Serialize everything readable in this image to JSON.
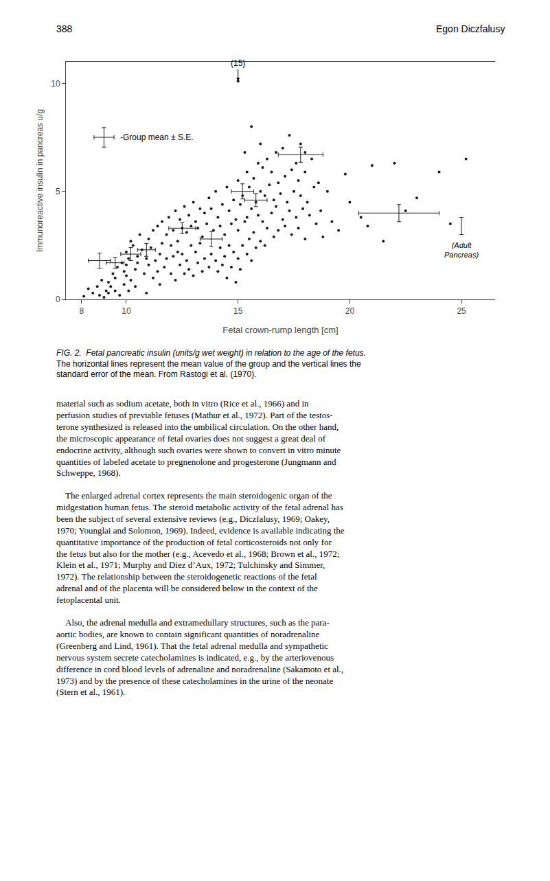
{
  "chart_data": {
    "type": "scatter",
    "x": [
      8.1,
      8.3,
      8.5,
      8.7,
      8.8,
      8.9,
      9.0,
      9.1,
      9.2,
      9.2,
      9.3,
      9.4,
      9.5,
      9.5,
      9.6,
      9.7,
      9.8,
      9.9,
      9.9,
      10.0,
      10.0,
      10.0,
      10.1,
      10.1,
      10.2,
      10.2,
      10.3,
      10.4,
      10.4,
      10.5,
      10.5,
      10.6,
      10.7,
      10.8,
      10.9,
      10.9,
      11.0,
      11.0,
      11.1,
      11.2,
      11.2,
      11.3,
      11.4,
      11.4,
      11.5,
      11.5,
      11.6,
      11.6,
      11.7,
      11.8,
      11.8,
      11.9,
      12.0,
      12.0,
      12.1,
      12.1,
      12.2,
      12.2,
      12.3,
      12.3,
      12.4,
      12.4,
      12.5,
      12.5,
      12.6,
      12.6,
      12.7,
      12.7,
      12.8,
      12.8,
      12.9,
      12.9,
      13.0,
      13.0,
      13.1,
      13.1,
      13.2,
      13.2,
      13.3,
      13.3,
      13.4,
      13.4,
      13.5,
      13.5,
      13.6,
      13.7,
      13.7,
      13.8,
      13.8,
      13.9,
      14.0,
      14.0,
      14.1,
      14.1,
      14.2,
      14.2,
      14.3,
      14.3,
      14.4,
      14.4,
      14.5,
      14.5,
      14.6,
      14.6,
      14.7,
      14.7,
      14.8,
      14.8,
      14.9,
      14.9,
      15.0,
      15.0,
      15.0,
      15.0,
      15.1,
      15.1,
      15.2,
      15.2,
      15.3,
      15.3,
      15.4,
      15.4,
      15.4,
      15.5,
      15.5,
      15.6,
      15.6,
      15.6,
      15.7,
      15.7,
      15.8,
      15.8,
      15.9,
      15.9,
      16.0,
      16.0,
      16.0,
      16.1,
      16.1,
      16.2,
      16.2,
      16.3,
      16.3,
      16.4,
      16.5,
      16.5,
      16.6,
      16.6,
      16.7,
      16.7,
      16.8,
      16.8,
      16.9,
      17.0,
      17.0,
      17.1,
      17.1,
      17.2,
      17.3,
      17.3,
      17.4,
      17.4,
      17.5,
      17.6,
      17.6,
      17.7,
      17.7,
      17.8,
      17.8,
      17.9,
      18.0,
      18.0,
      18.0,
      18.1,
      18.2,
      18.3,
      18.4,
      18.5,
      18.6,
      18.7,
      18.8,
      19.0,
      19.2,
      19.5,
      19.8,
      20.0,
      20.5,
      20.8,
      21.0,
      21.5,
      22.0,
      22.5,
      23.0,
      24.0,
      24.5,
      25.2
    ],
    "values": [
      0.15,
      0.5,
      0.3,
      0.6,
      0.2,
      0.9,
      0.1,
      0.4,
      0.8,
      0.3,
      0.6,
      1.2,
      0.4,
      1.0,
      1.5,
      0.2,
      1.7,
      1.3,
      0.7,
      1.6,
      2.2,
      1.1,
      0.4,
      1.9,
      2.7,
      0.9,
      2.5,
      1.4,
      0.6,
      2.0,
      1.7,
      3.0,
      2.3,
      1.2,
      1.9,
      0.3,
      2.8,
      1.6,
      2.4,
      3.2,
      1.0,
      1.8,
      3.4,
      1.3,
      2.1,
      0.7,
      3.6,
      2.6,
      1.5,
      3.0,
      1.9,
      3.8,
      2.5,
      1.2,
      3.2,
      2.0,
      4.1,
      0.9,
      2.7,
      2.2,
      3.7,
      1.6,
      3.3,
      2.1,
      4.3,
      1.2,
      3.1,
      1.8,
      3.9,
      1.4,
      3.4,
      2.5,
      4.5,
      1.1,
      3.6,
      2.2,
      3.3,
      1.7,
      4.2,
      2.6,
      2.9,
      1.3,
      4.0,
      1.9,
      3.5,
      4.7,
      1.5,
      4.2,
      2.1,
      3.2,
      5.0,
      1.8,
      3.8,
      1.3,
      3.4,
      2.4,
      4.4,
      1.6,
      3.0,
      2.0,
      5.2,
      1.0,
      4.1,
      2.5,
      3.5,
      1.5,
      4.6,
      2.2,
      3.7,
      0.8,
      10.1,
      5.5,
      3.2,
      1.9,
      4.4,
      1.4,
      4.8,
      2.5,
      3.6,
      6.8,
      5.9,
      3.8,
      2.1,
      5.2,
      2.8,
      8.0,
      4.2,
      1.8,
      5.6,
      3.1,
      4.5,
      2.4,
      6.3,
      3.9,
      5.0,
      2.7,
      7.2,
      6.1,
      3.6,
      4.8,
      2.5,
      6.5,
      3.3,
      5.3,
      4.0,
      5.9,
      2.9,
      4.6,
      6.8,
      4.3,
      5.4,
      3.2,
      4.9,
      7.0,
      3.7,
      5.7,
      3.4,
      4.5,
      7.6,
      4.1,
      6.0,
      3.0,
      5.0,
      6.3,
      3.8,
      5.5,
      3.3,
      4.8,
      7.2,
      4.2,
      5.9,
      2.8,
      6.8,
      4.5,
      3.9,
      6.5,
      5.2,
      3.5,
      5.4,
      4.1,
      2.9,
      5.0,
      3.6,
      3.2,
      5.8,
      4.5,
      3.8,
      3.4,
      6.2,
      2.7,
      6.3,
      4.1,
      4.7,
      5.9,
      3.5,
      6.5
    ],
    "color": "#1a1a1a",
    "group_means": [
      {
        "x": 8.8,
        "y": 1.8,
        "xerr": 0.5,
        "yerr": 0.35
      },
      {
        "x": 9.5,
        "y": 1.7,
        "xerr": 0.4,
        "yerr": 0.25
      },
      {
        "x": 10.2,
        "y": 2.1,
        "xerr": 0.45,
        "yerr": 0.3
      },
      {
        "x": 10.9,
        "y": 2.3,
        "xerr": 0.4,
        "yerr": 0.3
      },
      {
        "x": 12.5,
        "y": 3.3,
        "xerr": 0.6,
        "yerr": 0.25
      },
      {
        "x": 13.8,
        "y": 2.8,
        "xerr": 0.5,
        "yerr": 0.35
      },
      {
        "x": 15.2,
        "y": 5.0,
        "xerr": 0.5,
        "yerr": 0.35
      },
      {
        "x": 15.8,
        "y": 4.6,
        "xerr": 0.5,
        "yerr": 0.3
      },
      {
        "x": 17.8,
        "y": 6.7,
        "xerr": 1.0,
        "yerr": 0.35
      },
      {
        "x": 22.2,
        "y": 4.0,
        "xerr": 1.8,
        "yerr": 0.4
      }
    ],
    "adult_pancreas": {
      "x": 25.0,
      "y": 3.4,
      "yerr": 0.4,
      "label": "(Adult\nPancreas)"
    },
    "key": {
      "x": 9.0,
      "y": 7.5,
      "xerr": 0.45,
      "yerr": 0.45,
      "label": "-Group mean ± S.E."
    },
    "annotations": [
      {
        "text": "(15)",
        "x": 15.0,
        "y": 10.1
      }
    ],
    "xlim": [
      7.3,
      26.5
    ],
    "ylim": [
      0,
      11.0
    ],
    "xticks": [
      8,
      10,
      15,
      20,
      25
    ],
    "yticks": [
      0,
      5,
      10
    ],
    "xlabel": "Fetal crown-rump length [cm]",
    "ylabel": "Immunoreactive insulin in pancreas u/g",
    "grid": false,
    "page_header": [
      "388",
      "Egon Diczfalusy"
    ],
    "caption": {
      "label": "FIG. 2.",
      "lines": [
        "Fetal pancreatic insulin (units/g wet weight) in relation to the age of the fetus.",
        "The horizontal lines represent the mean value of the group and the vertical lines the",
        "standard error of the mean. From Rastogi et al. (1970)."
      ]
    },
    "body": [
      [
        "material such as sodium acetate, both in vitro (Rice et al., 1966) and in",
        "perfusion studies of previable fetuses (Mathur et al., 1972). Part of the testos-",
        "terone synthesized is released into the umbilical circulation. On the other hand,",
        "the microscopic appearance of fetal ovaries does not suggest a great deal of",
        "endocrine activity, although such ovaries were shown to convert in vitro minute",
        "quantities of labeled acetate to pregnenolone and progesterone (Jungmann and",
        "Schweppe, 1968)."
      ],
      [
        " The enlarged adrenal cortex represents the main steroidogenic organ of the",
        "midgestation human fetus. The steroid metabolic activity of the fetal adrenal has",
        "been the subject of several extensive reviews (e.g., Diczfalusy, 1969; Oakey,",
        "1970; Younglai and Solomon, 1969). Indeed, evidence is available indicating the",
        "quantitative importance of the production of fetal corticosteroids not only for",
        "the fetus but also for the mother (e.g., Acevedo et al., 1968; Brown et al., 1972;",
        "Klein et al., 1971; Murphy and Diez d’Aux, 1972; Tulchinsky and Simmer,",
        "1972). The relationship between the steroidogenetic reactions of the fetal",
        "adrenal and of the placenta will be considered below in the context of the",
        "fetoplacental unit."
      ],
      [
        " Also, the adrenal medulla and extramedullary structures, such as the para-",
        "aortic bodies, are known to contain significant quantities of noradrenaline",
        "(Greenberg and Lind, 1961). That the fetal adrenal medulla and sympathetic",
        "nervous system secrete catecholamines is indicated, e.g., by the arteriovenous",
        "difference in cord blood levels of adrenaline and noradrenaline (Sakamoto et al.,",
        "1973) and by the presence of these catecholamines in the urine of the neonate",
        "(Stern et al., 1961)."
      ]
    ]
  }
}
